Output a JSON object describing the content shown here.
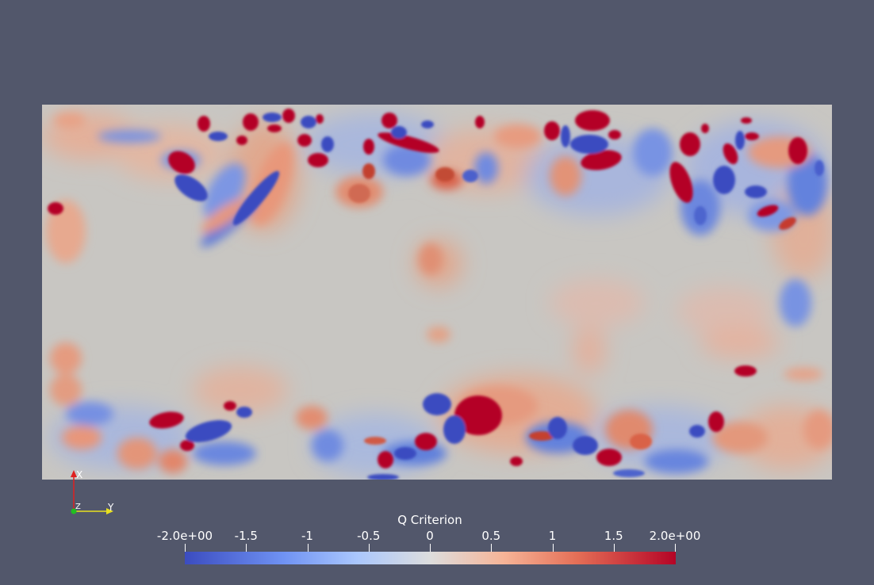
{
  "colorbar": {
    "title": "Q Criterion",
    "min": -2.0,
    "max": 2.0,
    "ticks": [
      {
        "value": -2.0,
        "label": "-2.0e+00"
      },
      {
        "value": -1.5,
        "label": "-1.5"
      },
      {
        "value": -1.0,
        "label": "-1"
      },
      {
        "value": -0.5,
        "label": "-0.5"
      },
      {
        "value": 0.0,
        "label": "0"
      },
      {
        "value": 0.5,
        "label": "0.5"
      },
      {
        "value": 1.0,
        "label": "1"
      },
      {
        "value": 1.5,
        "label": "1.5"
      },
      {
        "value": 2.0,
        "label": "2.0e+00"
      }
    ],
    "colormap": "cool-to-warm",
    "low_color": "#3b4cc0",
    "mid_color": "#dddddd",
    "high_color": "#b40426"
  },
  "axes": {
    "x_label": "X",
    "y_label": "Y",
    "z_label": "Z",
    "x_color": "#e02020",
    "y_color": "#e8e020",
    "z_color": "#20c020"
  },
  "colors": {
    "background": "#52576b",
    "field_neutral": "#c8c6c2"
  }
}
